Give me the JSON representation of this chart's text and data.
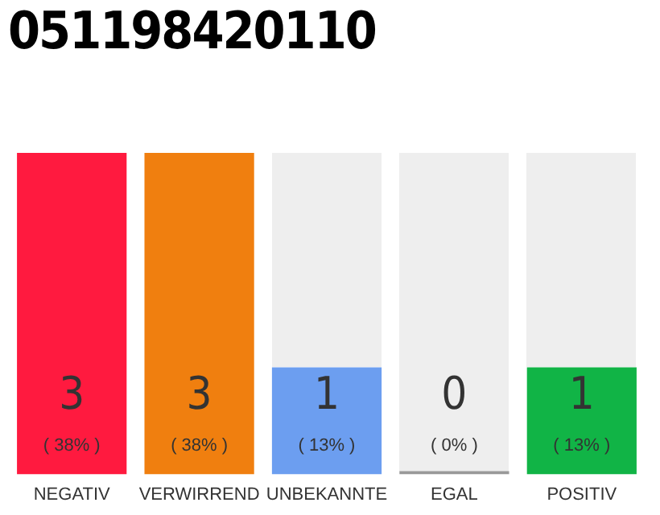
{
  "chart_data": {
    "type": "bar",
    "title": "051198420110",
    "categories": [
      "NEGATIV",
      "VERWIRREND",
      "UNBEKANNTE",
      "EGAL",
      "POSITIV"
    ],
    "values": [
      3,
      3,
      1,
      0,
      1
    ],
    "colors": [
      "#ff1a3f",
      "#f07f0f",
      "#6c9ef0",
      "#999999",
      "#11b446"
    ],
    "tick_labels": "x",
    "value_labels": [
      "3\n( 38% )",
      "3\n( 38% )",
      "1\n( 13% )",
      "0\n( 0% )",
      "1\n( 13% )"
    ],
    "grid": false,
    "legend": false
  }
}
